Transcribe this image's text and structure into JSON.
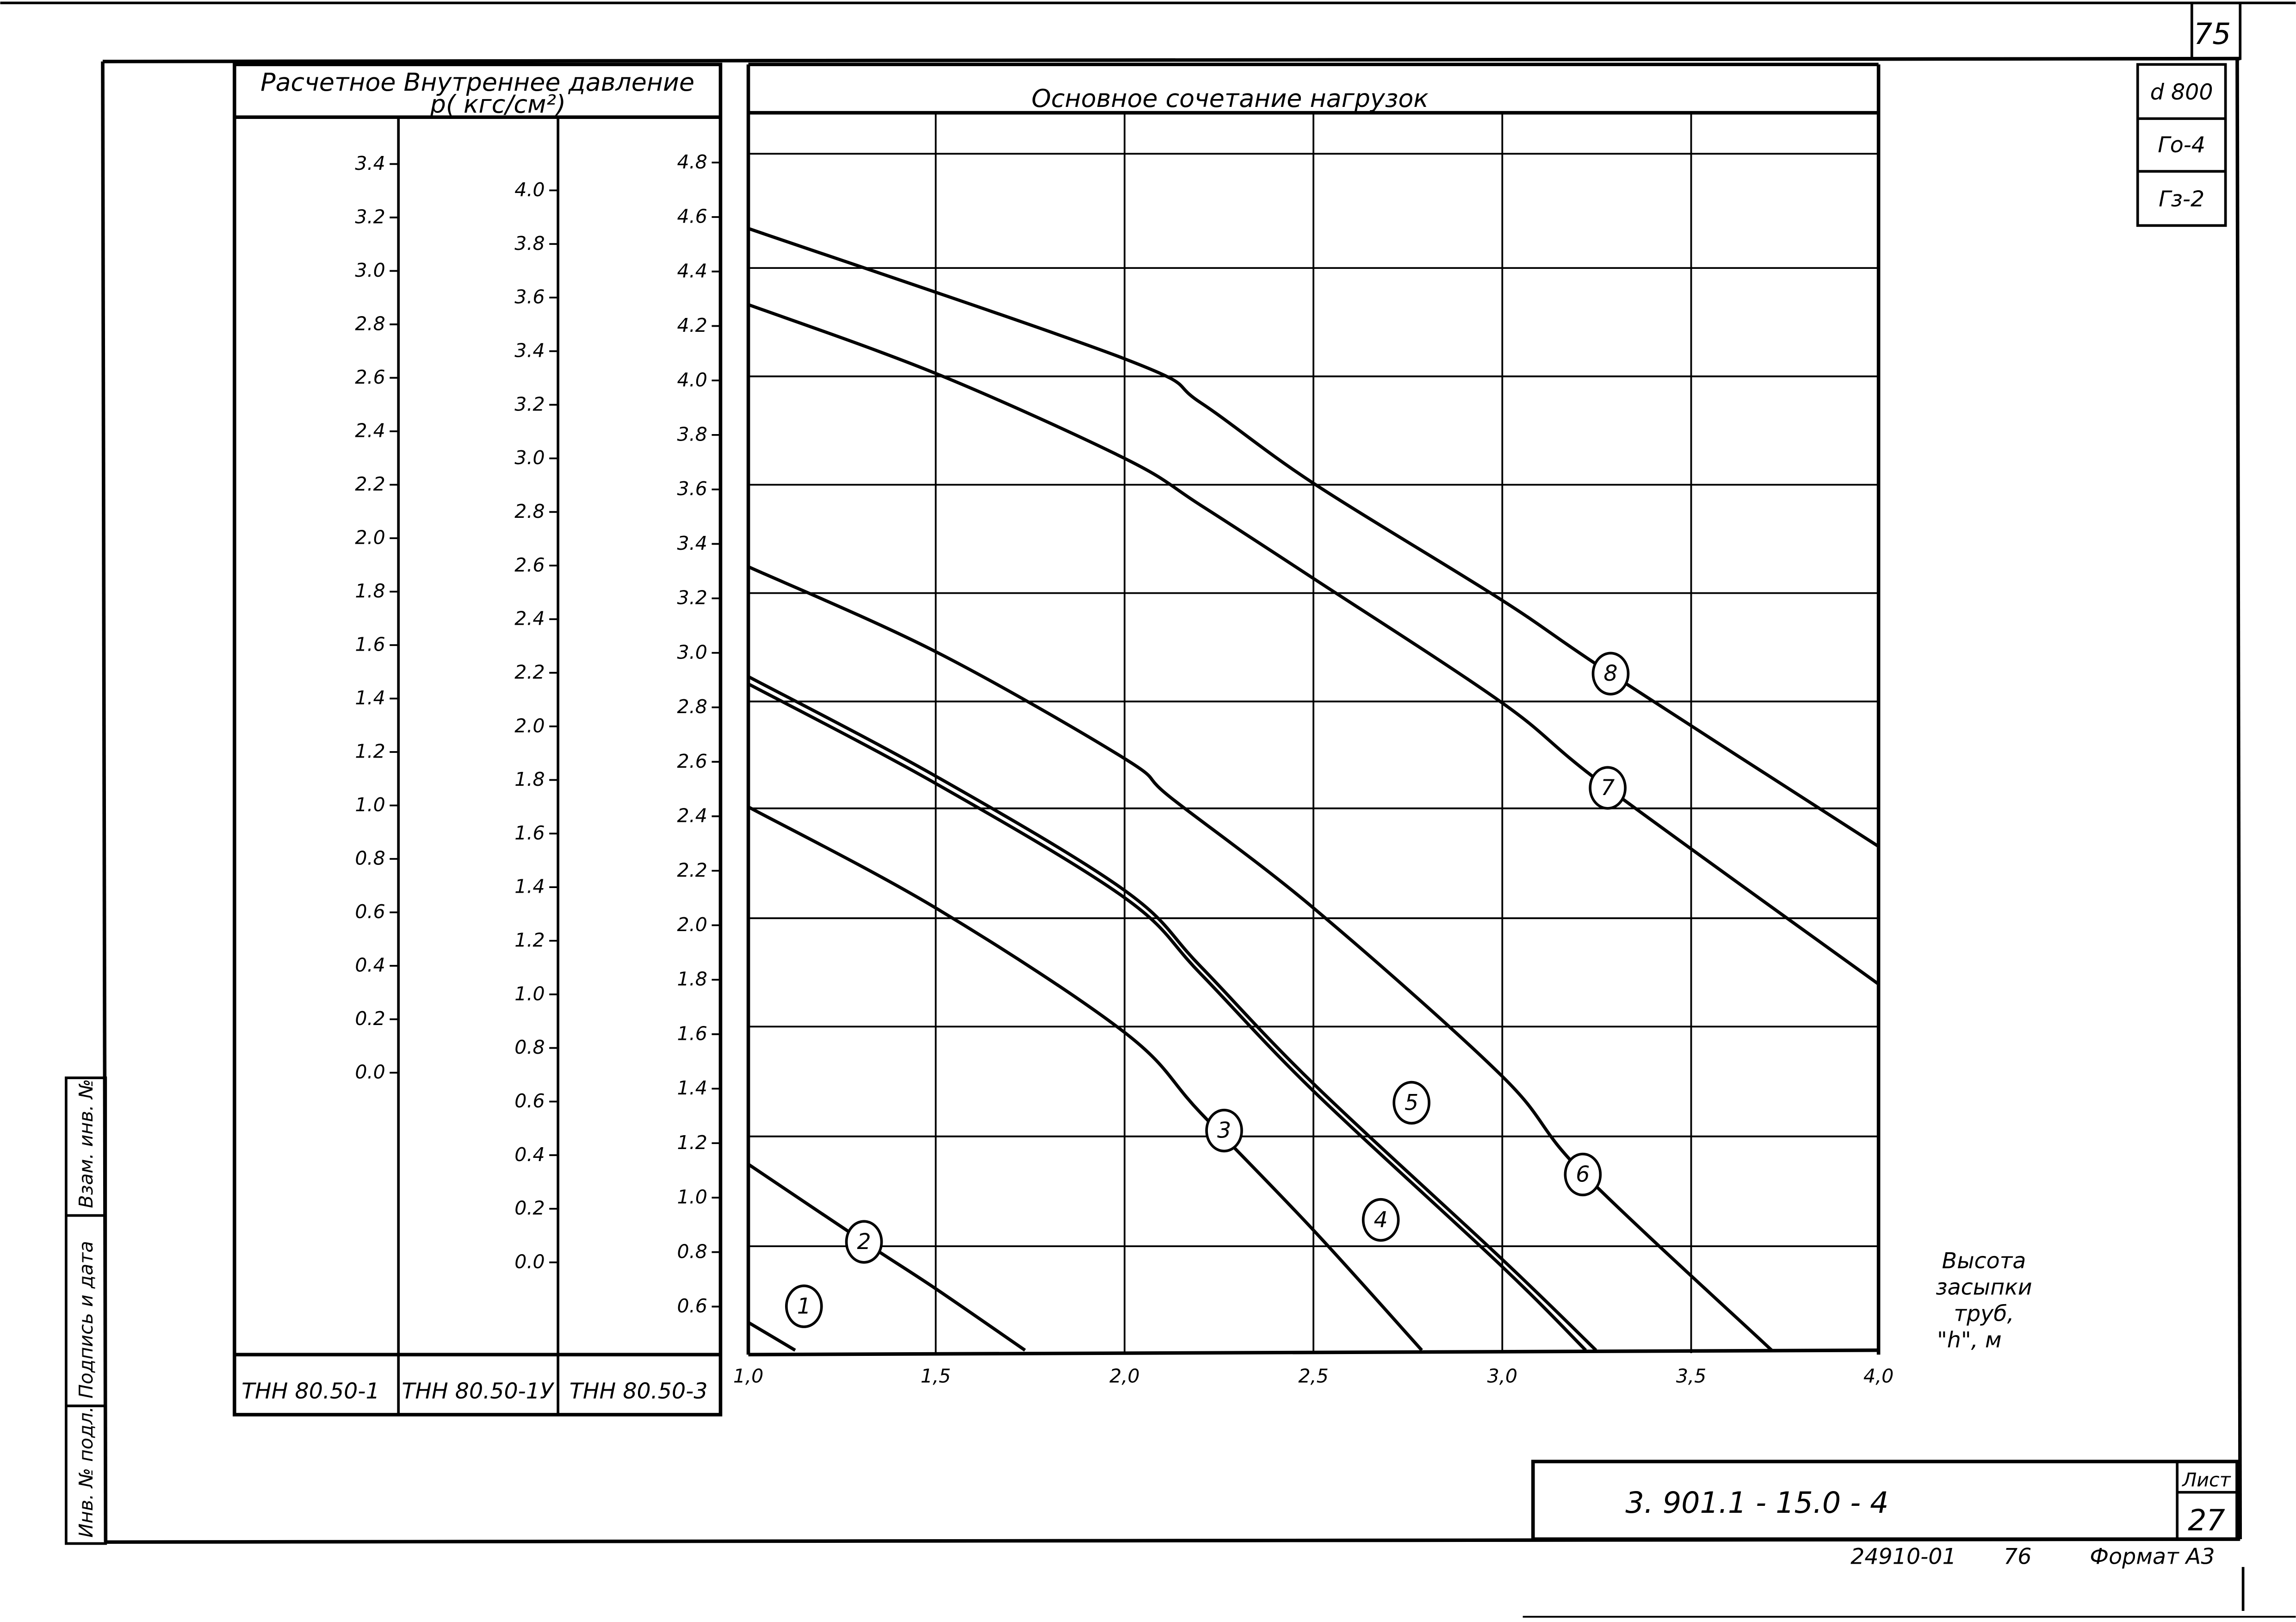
{
  "sheet": {
    "page_number_top": "75",
    "params": [
      "d 800",
      "Го-4",
      "Гз-2"
    ],
    "doc_code": "3. 901.1 - 15.0 - 4",
    "sheet_label": "Лист",
    "sheet_number": "27",
    "footer_code": "24910-01",
    "footer_num": "76",
    "format_label": "Формат А3",
    "side_stamp": [
      "Взам. инв. №",
      "Подпись и дата",
      "Инв. № подл."
    ]
  },
  "pressure_table": {
    "title_line1": "Расчетное Внутреннее давление",
    "title_line2": "p( кгс/см²)",
    "columns": [
      {
        "label": "ТНН 80.50-1",
        "ticks": [
          "3.4",
          "3.2",
          "3.0",
          "2.8",
          "2.6",
          "2.4",
          "2.2",
          "2.0",
          "1.8",
          "1.6",
          "1.4",
          "1.2",
          "1.0",
          "0.8",
          "0.6",
          "0.4",
          "0.2",
          "0.0"
        ]
      },
      {
        "label": "ТНН 80.50-1У",
        "ticks": [
          "4.0",
          "3.8",
          "3.6",
          "3.4",
          "3.2",
          "3.0",
          "2.8",
          "2.6",
          "2.4",
          "2.2",
          "2.0",
          "1.8",
          "1.6",
          "1.4",
          "1.2",
          "1.0",
          "0.8",
          "0.6",
          "0.4",
          "0.2",
          "0.0"
        ]
      },
      {
        "label": "ТНН 80.50-3",
        "ticks": [
          "4.8",
          "4.6",
          "4.4",
          "4.2",
          "4.0",
          "3.8",
          "3.6",
          "3.4",
          "3.2",
          "3.0",
          "2.8",
          "2.6",
          "2.4",
          "2.2",
          "2.0",
          "1.8",
          "1.6",
          "1.4",
          "1.2",
          "1.0",
          "0.8",
          "0.6"
        ]
      }
    ]
  },
  "chart_data": {
    "type": "line",
    "title": "Основное сочетание нагрузок",
    "xlabel": "Высота засыпки труб, \"h\", м",
    "ylabel": "Расчетное внутреннее давление p (кгс/см²)",
    "x_ticks": [
      "1,0",
      "1,5",
      "2,0",
      "2,5",
      "3,0",
      "3,5",
      "4,0"
    ],
    "xlim": [
      1.0,
      4.0
    ],
    "ylim_scale_THN80_50_3": [
      0.6,
      4.8
    ],
    "grid": true,
    "series": [
      {
        "name": "1",
        "x": [
          1.0,
          1.12
        ],
        "y_scale3": [
          0.65,
          0.55
        ]
      },
      {
        "name": "2",
        "x": [
          1.0,
          1.3,
          1.5,
          1.74
        ],
        "y_scale3": [
          1.12,
          0.84,
          0.67,
          0.55
        ]
      },
      {
        "name": "3",
        "x": [
          1.0,
          1.5,
          2.0,
          2.2,
          2.5,
          2.79
        ],
        "y_scale3": [
          2.42,
          2.05,
          1.59,
          1.29,
          0.86,
          0.55
        ]
      },
      {
        "name": "4",
        "x": [
          1.0,
          1.5,
          2.0,
          2.2,
          2.5,
          3.0,
          3.22
        ],
        "y_scale3": [
          2.87,
          2.5,
          2.08,
          1.8,
          1.37,
          0.73,
          0.55
        ]
      },
      {
        "name": "5",
        "x": [
          1.0,
          1.5,
          2.0,
          2.2,
          2.5,
          3.0,
          3.25
        ],
        "y_scale3": [
          2.9,
          2.53,
          2.11,
          1.83,
          1.4,
          0.75,
          0.55
        ]
      },
      {
        "name": "6",
        "x": [
          1.0,
          1.5,
          2.0,
          2.12,
          2.5,
          3.0,
          3.21,
          3.71
        ],
        "y_scale3": [
          3.3,
          2.99,
          2.6,
          2.45,
          2.04,
          1.42,
          1.07,
          0.55
        ]
      },
      {
        "name": "7",
        "x": [
          1.0,
          1.5,
          2.0,
          2.2,
          2.5,
          3.0,
          3.28,
          4.0
        ],
        "y_scale3": [
          4.28,
          4.03,
          3.71,
          3.54,
          3.27,
          2.81,
          2.5,
          1.78
        ]
      },
      {
        "name": "8",
        "x": [
          1.0,
          2.0,
          2.2,
          2.5,
          3.0,
          3.29,
          4.0
        ],
        "y_scale3": [
          4.55,
          4.07,
          3.91,
          3.61,
          3.18,
          2.91,
          2.28
        ]
      }
    ],
    "pixel_paths": {
      "1": [
        [
          511,
          903
        ],
        [
          543,
          922
        ]
      ],
      "2": [
        [
          511,
          795
        ],
        [
          590,
          848
        ],
        [
          639,
          880
        ],
        [
          700,
          922
        ]
      ],
      "3": [
        [
          511,
          551
        ],
        [
          639,
          620
        ],
        [
          768,
          705
        ],
        [
          820,
          760
        ],
        [
          897,
          840
        ],
        [
          971,
          922
        ]
      ],
      "4": [
        [
          511,
          467
        ],
        [
          639,
          535
        ],
        [
          768,
          613
        ],
        [
          820,
          665
        ],
        [
          897,
          745
        ],
        [
          1026,
          865
        ],
        [
          1083,
          922
        ]
      ],
      "5": [
        [
          511,
          462
        ],
        [
          639,
          530
        ],
        [
          768,
          608
        ],
        [
          820,
          660
        ],
        [
          897,
          740
        ],
        [
          1026,
          860
        ],
        [
          1090,
          922
        ]
      ],
      "6": [
        [
          511,
          387
        ],
        [
          639,
          445
        ],
        [
          768,
          518
        ],
        [
          800,
          545
        ],
        [
          897,
          620
        ],
        [
          1026,
          735
        ],
        [
          1080,
          800
        ],
        [
          1210,
          922
        ]
      ],
      "7": [
        [
          511,
          208
        ],
        [
          639,
          255
        ],
        [
          768,
          313
        ],
        [
          820,
          345
        ],
        [
          897,
          395
        ],
        [
          1026,
          480
        ],
        [
          1098,
          538
        ],
        [
          1283,
          672
        ]
      ],
      "8": [
        [
          511,
          156
        ],
        [
          768,
          245
        ],
        [
          820,
          275
        ],
        [
          897,
          330
        ],
        [
          1026,
          410
        ],
        [
          1100,
          460
        ],
        [
          1283,
          578
        ]
      ]
    },
    "curve_labels": [
      {
        "n": "1",
        "cx": 549,
        "cy": 892
      },
      {
        "n": "2",
        "cx": 590,
        "cy": 848
      },
      {
        "n": "3",
        "cx": 836,
        "cy": 772
      },
      {
        "n": "4",
        "cx": 943,
        "cy": 833
      },
      {
        "n": "5",
        "cx": 964,
        "cy": 753
      },
      {
        "n": "6",
        "cx": 1081,
        "cy": 802
      },
      {
        "n": "7",
        "cx": 1098,
        "cy": 538
      },
      {
        "n": "8",
        "cx": 1100,
        "cy": 460
      }
    ]
  }
}
